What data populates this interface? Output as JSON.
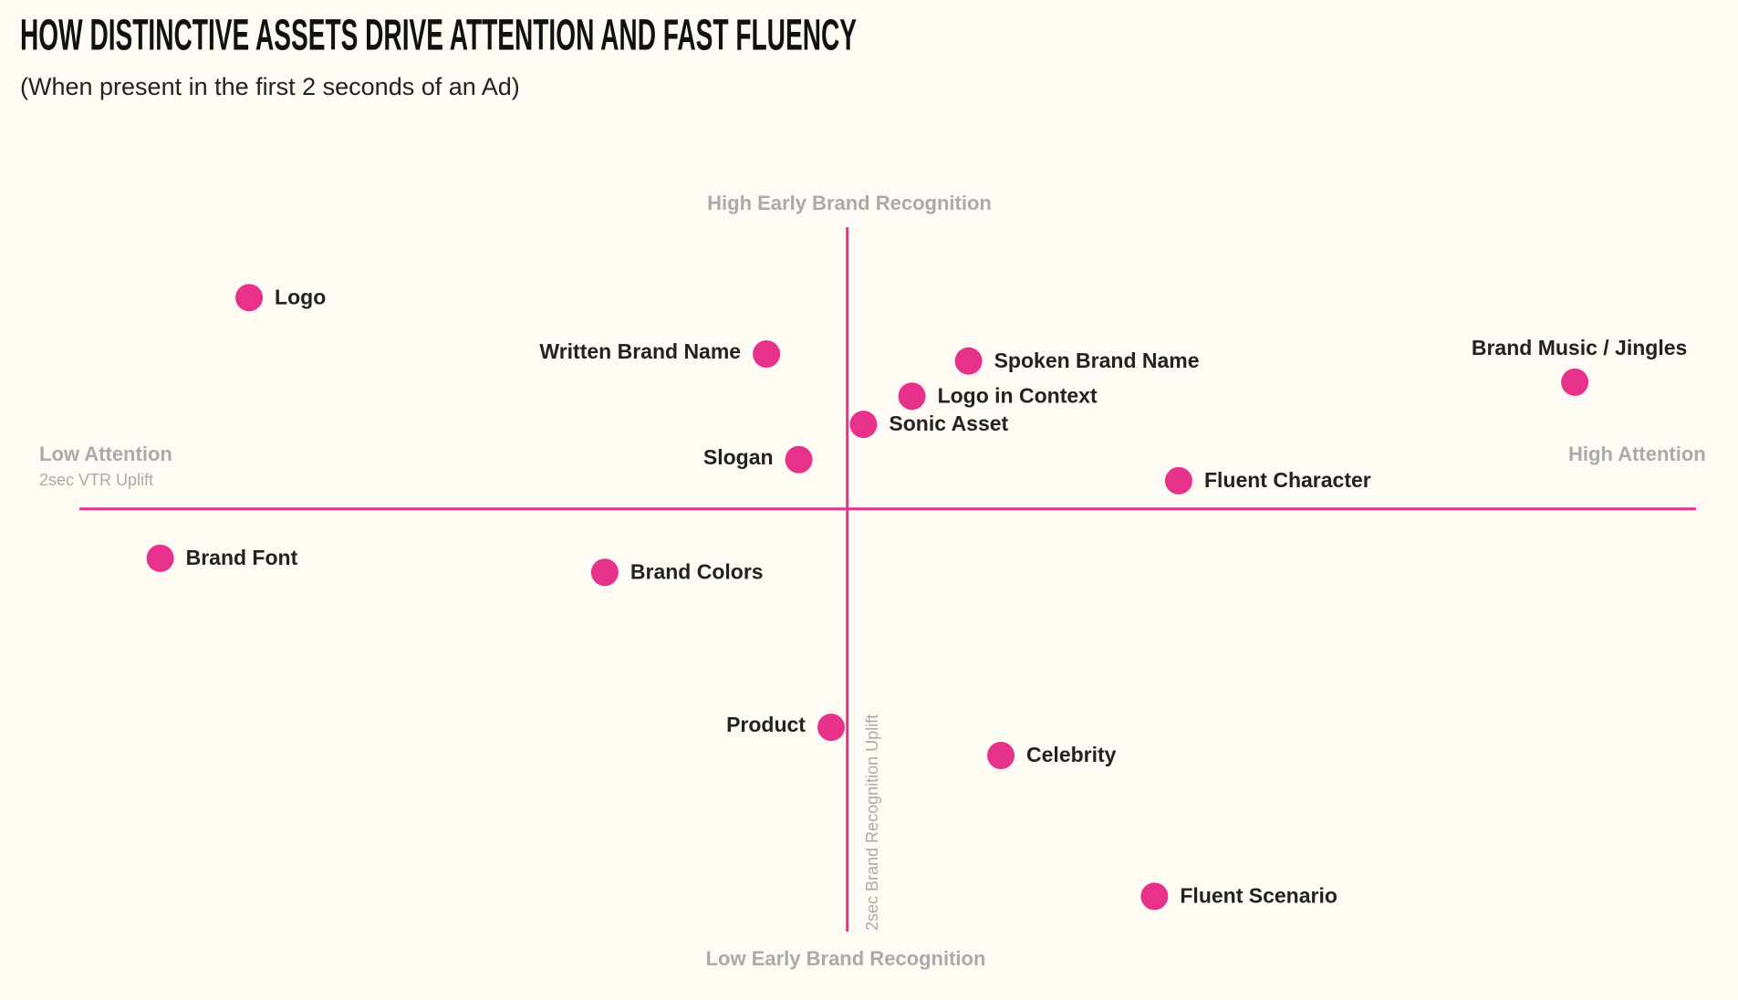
{
  "chart_data": {
    "type": "scatter",
    "title": "HOW DISTINCTIVE ASSETS DRIVE ATTENTION AND FAST FLUENCY",
    "subtitle": "(When present in the first 2 seconds of an Ad)",
    "y_label_high": "High Early Brand Recognition",
    "y_label_low": "Low Early Brand Recognition",
    "y_axis_title": "2sec Brand Recognition Uplift",
    "x_label_low": "Low Attention",
    "x_label_high": "High Attention",
    "x_axis_title": "2sec VTR Uplift",
    "color": "#e8318a",
    "xlim": [
      -95,
      105
    ],
    "ylim": [
      -60,
      40
    ],
    "labels": [
      "Logo",
      "Written Brand Name",
      "Spoken Brand Name",
      "Logo in Context",
      "Sonic Asset",
      "Slogan",
      "Brand Music / Jingles",
      "Fluent Character",
      "Brand Font",
      "Brand Colors",
      "Product",
      "Celebrity",
      "Fluent Scenario"
    ],
    "x": [
      -74,
      -10,
      15,
      8,
      2,
      -6,
      90,
      41,
      -85,
      -30,
      -2,
      19,
      38
    ],
    "y": [
      30,
      22,
      21,
      16,
      12,
      7,
      18,
      4,
      -7,
      -9,
      -31,
      -35,
      -55
    ]
  }
}
